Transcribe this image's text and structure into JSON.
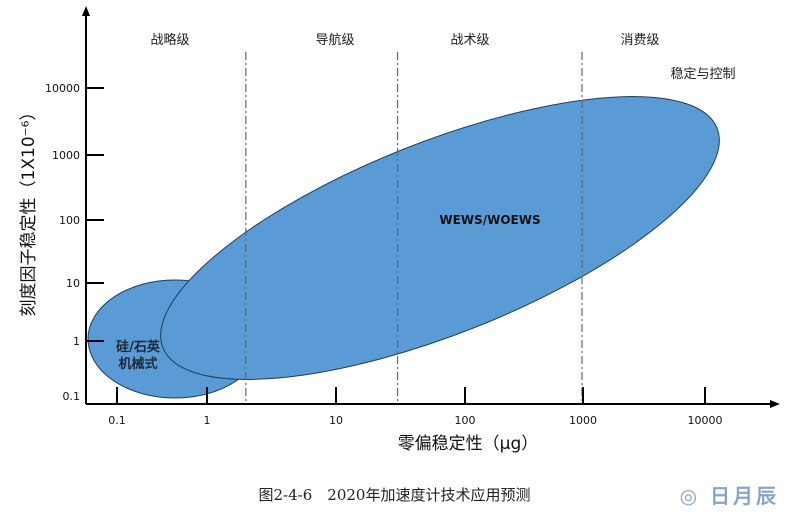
{
  "chart_data": {
    "type": "scatter",
    "title": "",
    "xlabel": "零偏稳定性（μg）",
    "ylabel": "刻度因子稳定性（1X10⁻⁶）",
    "x_scale": "log",
    "y_scale": "log",
    "x_ticks": [
      "0.1",
      "1",
      "10",
      "100",
      "1000",
      "10000"
    ],
    "x_tick_values": [
      0.1,
      1,
      10,
      100,
      1000,
      10000
    ],
    "y_ticks": [
      "0.1",
      "1",
      "10",
      "100",
      "1000",
      "10000"
    ],
    "y_tick_values": [
      0.1,
      1,
      10,
      100,
      1000,
      10000
    ],
    "grade_boundaries": [
      2,
      30,
      1000
    ],
    "grades": [
      "战略级",
      "导航级",
      "战术级",
      "消费级"
    ],
    "annotation": "稳定与控制",
    "regions": [
      {
        "name": "硅/石英机械式",
        "label_lines": [
          "硅/石英",
          "机械式"
        ],
        "x_range": [
          0.08,
          3
        ],
        "y_range": [
          0.1,
          10
        ],
        "color": "#5b9bd5"
      },
      {
        "name": "WEWS/WOEWS",
        "label_lines": [
          "WEWS/WOEWS"
        ],
        "x_range": [
          0.7,
          7000
        ],
        "y_range": [
          0.15,
          8000
        ],
        "color": "#5b9bd5"
      }
    ]
  },
  "caption": "图2-4-6　2020年加速度计技术应用预测",
  "watermark": "日月辰"
}
